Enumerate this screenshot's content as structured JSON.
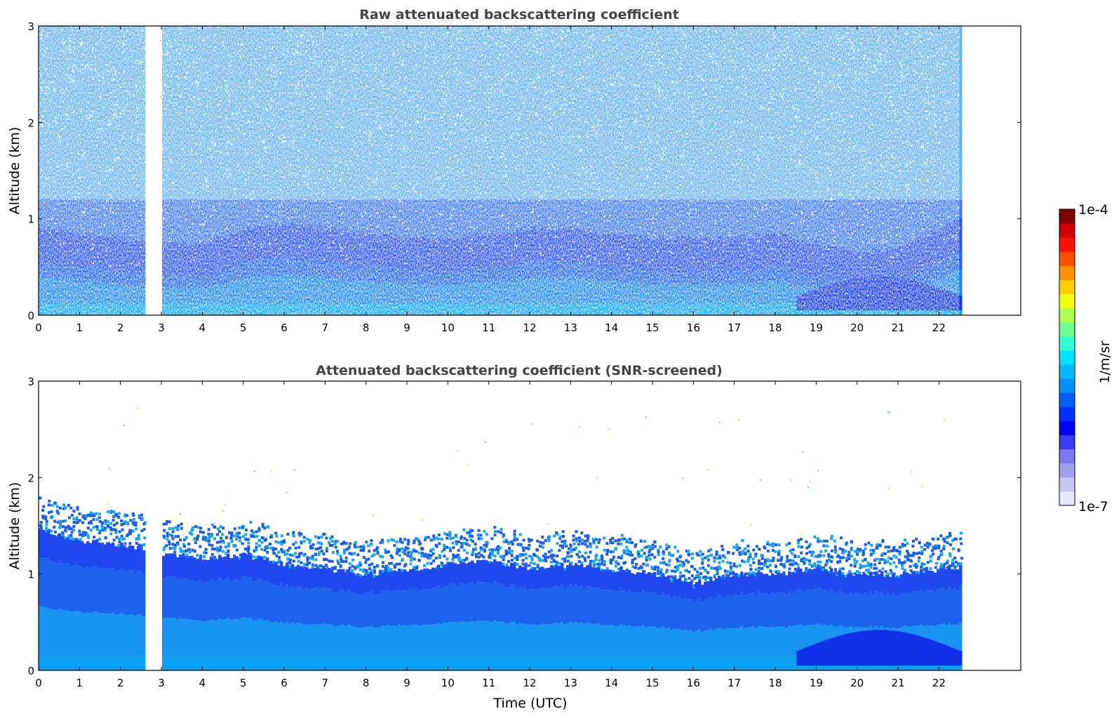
{
  "chart_data": [
    {
      "type": "heatmap",
      "title": "Raw attenuated backscattering coefficient",
      "xlabel": "",
      "ylabel": "Altitude (km)",
      "xlim": [
        0,
        24
      ],
      "ylim": [
        0,
        3
      ],
      "xticks": [
        "0",
        "1",
        "2",
        "3",
        "4",
        "5",
        "6",
        "7",
        "8",
        "9",
        "10",
        "11",
        "12",
        "13",
        "14",
        "15",
        "16",
        "17",
        "18",
        "19",
        "20",
        "21",
        "22"
      ],
      "yticks": [
        "0",
        "1",
        "2",
        "3"
      ],
      "data_extent_hours": [
        0,
        22.5
      ],
      "gap_hours": [
        2.6,
        2.95
      ],
      "layer_top_km": [
        0.55,
        0.5,
        0.45,
        0.4,
        0.4,
        0.55,
        0.6,
        0.55,
        0.5,
        0.45,
        0.45,
        0.5,
        0.55,
        0.55,
        0.5,
        0.45,
        0.45,
        0.45,
        0.5,
        0.4,
        0.3,
        0.35,
        0.55
      ]
    },
    {
      "type": "heatmap",
      "title": "Attenuated backscattering coefficient (SNR-screened)",
      "xlabel": "Time (UTC)",
      "ylabel": "Altitude (km)",
      "xlim": [
        0,
        24
      ],
      "ylim": [
        0,
        3
      ],
      "xticks": [
        "0",
        "1",
        "2",
        "3",
        "4",
        "5",
        "6",
        "7",
        "8",
        "9",
        "10",
        "11",
        "12",
        "13",
        "14",
        "15",
        "16",
        "17",
        "18",
        "19",
        "20",
        "21",
        "22"
      ],
      "yticks": [
        "0",
        "1",
        "2",
        "3"
      ],
      "data_extent_hours": [
        0,
        22.5
      ],
      "gap_hours": [
        2.6,
        2.95
      ],
      "screen_top_km": [
        1.45,
        1.35,
        1.3,
        1.2,
        1.15,
        1.2,
        1.1,
        1.05,
        1.0,
        1.05,
        1.1,
        1.15,
        1.05,
        1.1,
        1.05,
        1.0,
        0.9,
        1.0,
        1.0,
        1.05,
        1.0,
        1.0,
        1.05
      ]
    }
  ],
  "colorbar": {
    "label": "1/m/sr",
    "max_label": "1e-4",
    "min_label": "1e-7",
    "colormap": "jet",
    "colors": [
      "#e6e6f8",
      "#c8c8f0",
      "#a0a0ec",
      "#7878f0",
      "#3c3cf8",
      "#0000ff",
      "#0030ff",
      "#0060ff",
      "#0090ff",
      "#00b8ff",
      "#00e0ff",
      "#30ffd0",
      "#70ff90",
      "#b0ff50",
      "#f0ff10",
      "#ffd000",
      "#ff9000",
      "#ff5000",
      "#ff1000",
      "#d00000",
      "#800000"
    ]
  }
}
